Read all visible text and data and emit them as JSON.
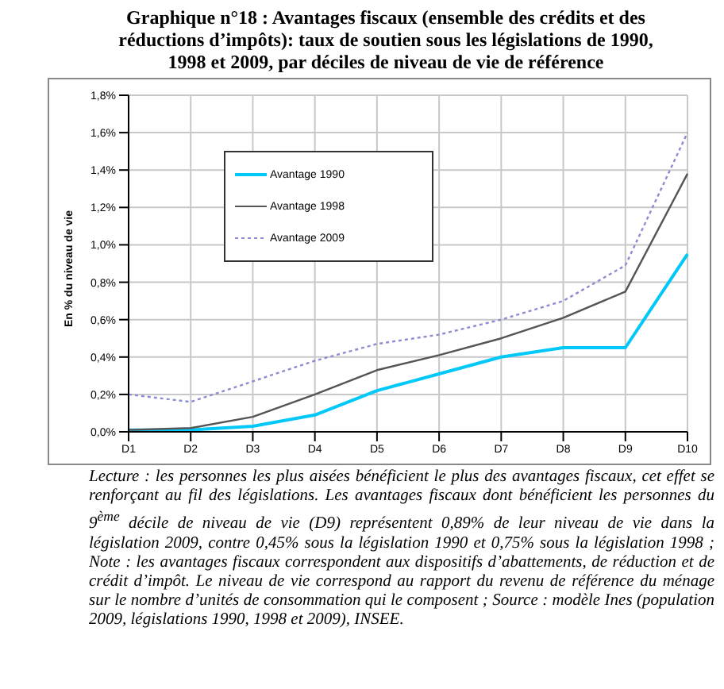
{
  "chart_data": {
    "type": "line",
    "title": "Graphique n°18 : Avantages fiscaux (ensemble des crédits et des réductions d’impôts): taux de soutien sous les législations de 1990, 1998 et 2009, par déciles de niveau de vie de référence",
    "ylabel": "En % du niveau de vie",
    "categories": [
      "D1",
      "D2",
      "D3",
      "D4",
      "D5",
      "D6",
      "D7",
      "D8",
      "D9",
      "D10"
    ],
    "series": [
      {
        "name": "Avantage 1990",
        "color": "#00c8f8",
        "line_style": "solid",
        "values": [
          0.01,
          0.01,
          0.03,
          0.09,
          0.22,
          0.31,
          0.4,
          0.45,
          0.45,
          0.95
        ]
      },
      {
        "name": "Avantage 1998",
        "color": "#555555",
        "line_style": "solid",
        "values": [
          0.01,
          0.02,
          0.08,
          0.2,
          0.33,
          0.41,
          0.5,
          0.61,
          0.75,
          1.38
        ]
      },
      {
        "name": "Avantage 2009",
        "color": "#8c8cd0",
        "line_style": "dotted",
        "values": [
          0.2,
          0.16,
          0.27,
          0.38,
          0.47,
          0.52,
          0.6,
          0.7,
          0.89,
          1.6
        ]
      }
    ],
    "ylim": [
      0,
      1.8
    ],
    "yticks": [
      {
        "value": 0,
        "label": "0,0%"
      },
      {
        "value": 0.2,
        "label": "0,2%"
      },
      {
        "value": 0.4,
        "label": "0,4%"
      },
      {
        "value": 0.6,
        "label": "0,6%"
      },
      {
        "value": 0.8,
        "label": "0,8%"
      },
      {
        "value": 1.0,
        "label": "1,0%"
      },
      {
        "value": 1.2,
        "label": "1,2%"
      },
      {
        "value": 1.4,
        "label": "1,4%"
      },
      {
        "value": 1.6,
        "label": "1,6%"
      },
      {
        "value": 1.8,
        "label": "1,8%"
      }
    ],
    "grid": true,
    "legend": "top left",
    "marker": "none",
    "annotations": [
      "Lecture : les personnes les plus aisées bénéficient le plus des avantages fiscaux, cet effet se renforçant au fil des législations. Les avantages fiscaux dont bénéficient les personnes du 9$^{ème}$ décile de niveau de vie (D9) représentent 0,89% de leur niveau de vie dans la législation 2009, contre 0,45% sous la législation 1990 et 0,75% sous la législation 1998 ; Note : les avantages fiscaux correspondent aux dispositifs d’abattements, de réduction et de crédit d’impôt. Le niveau de vie correspond au rapport du revenu de référence du ménage sur le nombre d’unités de consommation qui le composent ; Source : modèle Ines (population 2009, législations 1990, 1998 et 2009), INSEE."
    ]
  }
}
